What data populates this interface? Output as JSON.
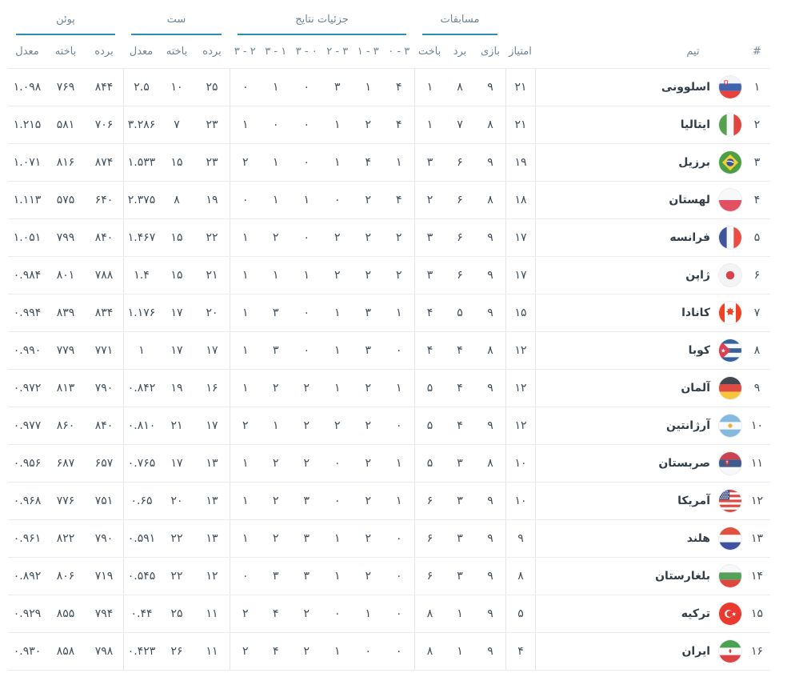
{
  "theme": {
    "accent": "#2b90ae",
    "header_text": "#6f8494",
    "body_text": "#414e5a",
    "divider": "#ececec"
  },
  "table": {
    "rank_header": "#",
    "team_header": "تیم",
    "points_header": "امتیاز",
    "groups": [
      {
        "title": "مسابقات",
        "cols": [
          "بازی",
          "برد",
          "باخت"
        ]
      },
      {
        "title": "جزئیات نتایج",
        "cols": [
          "۰ - ۳",
          "۱ - ۳",
          "۲ - ۳",
          "۳ - ۰",
          "۳ - ۱",
          "۳ - ۲"
        ]
      },
      {
        "title": "ست",
        "cols": [
          "برده",
          "باخته",
          "معدل"
        ]
      },
      {
        "title": "پوئن",
        "cols": [
          "برده",
          "باخته",
          "معدل"
        ]
      }
    ],
    "rows": [
      {
        "rank": "۱",
        "team": "اسلوونی",
        "flag": "slovenia",
        "points": "۲۱",
        "played": "۹",
        "won": "۸",
        "lost": "۱",
        "details": [
          "۴",
          "۱",
          "۳",
          "۰",
          "۱",
          "۰"
        ],
        "sets_won": "۲۵",
        "sets_lost": "۱۰",
        "sets_ratio": "۲.۵",
        "pts_won": "۸۴۴",
        "pts_lost": "۷۶۹",
        "pts_ratio": "۱.۰۹۸"
      },
      {
        "rank": "۲",
        "team": "ایتالیا",
        "flag": "italy",
        "points": "۲۱",
        "played": "۸",
        "won": "۷",
        "lost": "۱",
        "details": [
          "۴",
          "۲",
          "۱",
          "۰",
          "۰",
          "۱"
        ],
        "sets_won": "۲۳",
        "sets_lost": "۷",
        "sets_ratio": "۳.۲۸۶",
        "pts_won": "۷۰۶",
        "pts_lost": "۵۸۱",
        "pts_ratio": "۱.۲۱۵"
      },
      {
        "rank": "۳",
        "team": "برزیل",
        "flag": "brazil",
        "points": "۱۹",
        "played": "۹",
        "won": "۶",
        "lost": "۳",
        "details": [
          "۱",
          "۴",
          "۱",
          "۰",
          "۱",
          "۲"
        ],
        "sets_won": "۲۳",
        "sets_lost": "۱۵",
        "sets_ratio": "۱.۵۳۳",
        "pts_won": "۸۷۴",
        "pts_lost": "۸۱۶",
        "pts_ratio": "۱.۰۷۱"
      },
      {
        "rank": "۴",
        "team": "لهستان",
        "flag": "poland",
        "points": "۱۸",
        "played": "۸",
        "won": "۶",
        "lost": "۲",
        "details": [
          "۴",
          "۲",
          "۰",
          "۱",
          "۱",
          "۰"
        ],
        "sets_won": "۱۹",
        "sets_lost": "۸",
        "sets_ratio": "۲.۳۷۵",
        "pts_won": "۶۴۰",
        "pts_lost": "۵۷۵",
        "pts_ratio": "۱.۱۱۳"
      },
      {
        "rank": "۵",
        "team": "فرانسه",
        "flag": "france",
        "points": "۱۷",
        "played": "۹",
        "won": "۶",
        "lost": "۳",
        "details": [
          "۲",
          "۲",
          "۲",
          "۰",
          "۲",
          "۱"
        ],
        "sets_won": "۲۲",
        "sets_lost": "۱۵",
        "sets_ratio": "۱.۴۶۷",
        "pts_won": "۸۴۰",
        "pts_lost": "۷۹۹",
        "pts_ratio": "۱.۰۵۱"
      },
      {
        "rank": "۶",
        "team": "ژاپن",
        "flag": "japan",
        "points": "۱۷",
        "played": "۹",
        "won": "۶",
        "lost": "۳",
        "details": [
          "۲",
          "۲",
          "۲",
          "۱",
          "۱",
          "۱"
        ],
        "sets_won": "۲۱",
        "sets_lost": "۱۵",
        "sets_ratio": "۱.۴",
        "pts_won": "۷۸۸",
        "pts_lost": "۸۰۱",
        "pts_ratio": "۰.۹۸۴"
      },
      {
        "rank": "۷",
        "team": "کانادا",
        "flag": "canada",
        "points": "۱۵",
        "played": "۹",
        "won": "۵",
        "lost": "۴",
        "details": [
          "۱",
          "۳",
          "۱",
          "۰",
          "۳",
          "۱"
        ],
        "sets_won": "۲۰",
        "sets_lost": "۱۷",
        "sets_ratio": "۱.۱۷۶",
        "pts_won": "۸۳۴",
        "pts_lost": "۸۳۹",
        "pts_ratio": "۰.۹۹۴"
      },
      {
        "rank": "۸",
        "team": "کوبا",
        "flag": "cuba",
        "points": "۱۲",
        "played": "۸",
        "won": "۴",
        "lost": "۴",
        "details": [
          "۰",
          "۳",
          "۱",
          "۰",
          "۳",
          "۱"
        ],
        "sets_won": "۱۷",
        "sets_lost": "۱۷",
        "sets_ratio": "۱",
        "pts_won": "۷۷۱",
        "pts_lost": "۷۷۹",
        "pts_ratio": "۰.۹۹۰"
      },
      {
        "rank": "۹",
        "team": "آلمان",
        "flag": "germany",
        "points": "۱۲",
        "played": "۹",
        "won": "۴",
        "lost": "۵",
        "details": [
          "۱",
          "۲",
          "۱",
          "۲",
          "۲",
          "۱"
        ],
        "sets_won": "۱۶",
        "sets_lost": "۱۹",
        "sets_ratio": "۰.۸۴۲",
        "pts_won": "۷۹۰",
        "pts_lost": "۸۱۳",
        "pts_ratio": "۰.۹۷۲"
      },
      {
        "rank": "۱۰",
        "team": "آرژانتین",
        "flag": "argentina",
        "points": "۱۲",
        "played": "۹",
        "won": "۴",
        "lost": "۵",
        "details": [
          "۰",
          "۲",
          "۲",
          "۲",
          "۱",
          "۲"
        ],
        "sets_won": "۱۷",
        "sets_lost": "۲۱",
        "sets_ratio": "۰.۸۱۰",
        "pts_won": "۸۴۰",
        "pts_lost": "۸۶۰",
        "pts_ratio": "۰.۹۷۷"
      },
      {
        "rank": "۱۱",
        "team": "صربستان",
        "flag": "serbia",
        "points": "۱۰",
        "played": "۸",
        "won": "۳",
        "lost": "۵",
        "details": [
          "۱",
          "۲",
          "۰",
          "۲",
          "۲",
          "۱"
        ],
        "sets_won": "۱۳",
        "sets_lost": "۱۷",
        "sets_ratio": "۰.۷۶۵",
        "pts_won": "۶۵۷",
        "pts_lost": "۶۸۷",
        "pts_ratio": "۰.۹۵۶"
      },
      {
        "rank": "۱۲",
        "team": "آمریکا",
        "flag": "usa",
        "points": "۱۰",
        "played": "۹",
        "won": "۳",
        "lost": "۶",
        "details": [
          "۱",
          "۲",
          "۰",
          "۳",
          "۲",
          "۱"
        ],
        "sets_won": "۱۳",
        "sets_lost": "۲۰",
        "sets_ratio": "۰.۶۵",
        "pts_won": "۷۵۱",
        "pts_lost": "۷۷۶",
        "pts_ratio": "۰.۹۶۸"
      },
      {
        "rank": "۱۳",
        "team": "هلند",
        "flag": "netherlands",
        "points": "۹",
        "played": "۹",
        "won": "۳",
        "lost": "۶",
        "details": [
          "۰",
          "۲",
          "۱",
          "۳",
          "۲",
          "۱"
        ],
        "sets_won": "۱۳",
        "sets_lost": "۲۲",
        "sets_ratio": "۰.۵۹۱",
        "pts_won": "۷۹۰",
        "pts_lost": "۸۲۲",
        "pts_ratio": "۰.۹۶۱"
      },
      {
        "rank": "۱۴",
        "team": "بلغارستان",
        "flag": "bulgaria",
        "points": "۸",
        "played": "۹",
        "won": "۳",
        "lost": "۶",
        "details": [
          "۰",
          "۲",
          "۱",
          "۳",
          "۳",
          "۰"
        ],
        "sets_won": "۱۲",
        "sets_lost": "۲۲",
        "sets_ratio": "۰.۵۴۵",
        "pts_won": "۷۱۹",
        "pts_lost": "۸۰۶",
        "pts_ratio": "۰.۸۹۲"
      },
      {
        "rank": "۱۵",
        "team": "ترکیه",
        "flag": "turkey",
        "points": "۵",
        "played": "۹",
        "won": "۱",
        "lost": "۸",
        "details": [
          "۰",
          "۱",
          "۰",
          "۲",
          "۴",
          "۲"
        ],
        "sets_won": "۱۱",
        "sets_lost": "۲۵",
        "sets_ratio": "۰.۴۴",
        "pts_won": "۷۹۴",
        "pts_lost": "۸۵۵",
        "pts_ratio": "۰.۹۲۹"
      },
      {
        "rank": "۱۶",
        "team": "ایران",
        "flag": "iran",
        "points": "۴",
        "played": "۹",
        "won": "۱",
        "lost": "۸",
        "details": [
          "۰",
          "۰",
          "۱",
          "۲",
          "۴",
          "۲"
        ],
        "sets_won": "۱۱",
        "sets_lost": "۲۶",
        "sets_ratio": "۰.۴۲۳",
        "pts_won": "۷۹۸",
        "pts_lost": "۸۵۸",
        "pts_ratio": "۰.۹۳۰"
      }
    ]
  }
}
